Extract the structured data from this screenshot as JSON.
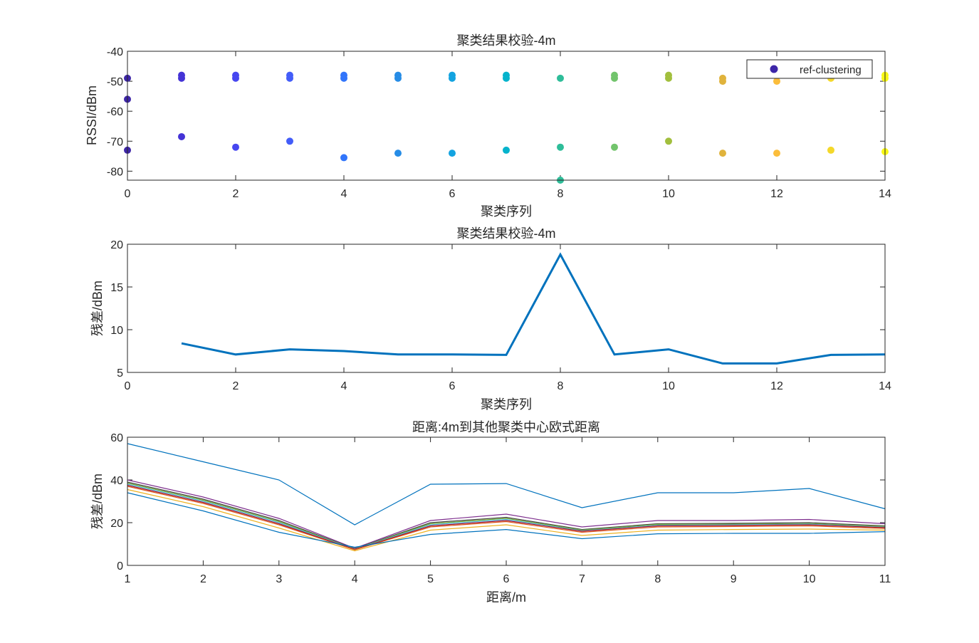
{
  "chart_data": [
    {
      "type": "scatter",
      "title": "聚类结果校验-4m",
      "xlabel": "聚类序列",
      "ylabel": "RSSI/dBm",
      "xlim": [
        0,
        14
      ],
      "ylim": [
        -83,
        -40
      ],
      "xticks": [
        0,
        2,
        4,
        6,
        8,
        10,
        12,
        14
      ],
      "yticks": [
        -40,
        -50,
        -60,
        -70,
        -80
      ],
      "legend": {
        "entries": [
          "ref-clustering"
        ],
        "placement": "top-right",
        "marker_color": "#3d26a8"
      },
      "clusters": [
        {
          "x": 0,
          "y": [
            -49,
            -56,
            -73
          ],
          "color": "#3e26a8"
        },
        {
          "x": 1,
          "y": [
            -48,
            -49,
            -68.5
          ],
          "color": "#4433d6"
        },
        {
          "x": 2,
          "y": [
            -48,
            -49,
            -72
          ],
          "color": "#4747f0"
        },
        {
          "x": 3,
          "y": [
            -48,
            -49,
            -70
          ],
          "color": "#435df9"
        },
        {
          "x": 4,
          "y": [
            -48,
            -49,
            -75.5
          ],
          "color": "#3175fb"
        },
        {
          "x": 5,
          "y": [
            -48,
            -49,
            -74
          ],
          "color": "#268ce6"
        },
        {
          "x": 6,
          "y": [
            -48,
            -49,
            -74
          ],
          "color": "#13a3e0"
        },
        {
          "x": 7,
          "y": [
            -48,
            -49,
            -73
          ],
          "color": "#05b3cc"
        },
        {
          "x": 8,
          "y": [
            -49,
            -72,
            -83
          ],
          "color": "#2ebd99"
        },
        {
          "x": 9,
          "y": [
            -48,
            -49,
            -72
          ],
          "color": "#72c46c"
        },
        {
          "x": 10,
          "y": [
            -48,
            -49,
            -70
          ],
          "color": "#a2bf3d"
        },
        {
          "x": 11,
          "y": [
            -49,
            -50,
            -74
          ],
          "color": "#e0b33c"
        },
        {
          "x": 12,
          "y": [
            -50,
            -74
          ],
          "color": "#fbbd3b"
        },
        {
          "x": 13,
          "y": [
            -49,
            -73
          ],
          "color": "#f4d82a"
        },
        {
          "x": 14,
          "y": [
            -48,
            -49,
            -73.5
          ],
          "color": "#f9f914"
        }
      ]
    },
    {
      "type": "line",
      "title": "聚类结果校验-4m",
      "xlabel": "聚类序列",
      "ylabel": "残差/dBm",
      "xlim": [
        0,
        14
      ],
      "ylim": [
        5,
        20
      ],
      "xticks": [
        0,
        2,
        4,
        6,
        8,
        10,
        12,
        14
      ],
      "yticks": [
        5,
        10,
        15,
        20
      ],
      "color": "#0072bd",
      "x": [
        1,
        2,
        3,
        4,
        5,
        6,
        7,
        8,
        9,
        10,
        11,
        12,
        13,
        14
      ],
      "values": [
        8.4,
        7.1,
        7.7,
        7.5,
        7.1,
        7.1,
        7.05,
        18.8,
        7.1,
        7.7,
        6.05,
        6.05,
        7.05,
        7.1
      ]
    },
    {
      "type": "line",
      "title": "距离:4m到其他聚类中心欧式距离",
      "xlabel": "距离/m",
      "ylabel": "残差/dBm",
      "xlim": [
        1,
        11
      ],
      "ylim": [
        0,
        60
      ],
      "xticks": [
        1,
        2,
        3,
        4,
        5,
        6,
        7,
        8,
        9,
        10,
        11
      ],
      "yticks": [
        0,
        20,
        40,
        60
      ],
      "x": [
        1,
        2,
        3,
        4,
        5,
        6,
        7,
        8,
        9,
        10,
        11
      ],
      "series": [
        {
          "color": "#0072bd",
          "values": [
            57,
            48.5,
            40,
            19,
            38,
            38.3,
            27,
            34,
            34,
            36,
            26.5
          ]
        },
        {
          "color": "#7e2f8e",
          "values": [
            40,
            32,
            22,
            8,
            21,
            24,
            18,
            21,
            21,
            21.5,
            19.5
          ]
        },
        {
          "color": "#444444",
          "values": [
            39,
            31,
            21,
            7.8,
            20,
            22.5,
            16.8,
            19.5,
            19.7,
            20,
            18.5
          ]
        },
        {
          "color": "#77ac30",
          "values": [
            38.5,
            30.5,
            20.5,
            7.7,
            19.5,
            22,
            16.5,
            19.2,
            19.3,
            19.6,
            18.2
          ]
        },
        {
          "color": "#4dbeee",
          "values": [
            38,
            30,
            20,
            7.6,
            19,
            21.5,
            16.2,
            18.8,
            19,
            19.3,
            17.9
          ]
        },
        {
          "color": "#a2142f",
          "values": [
            37.5,
            29.5,
            19.5,
            7.5,
            18.5,
            21,
            16,
            18.5,
            18.7,
            19,
            17.7
          ]
        },
        {
          "color": "#d95319",
          "values": [
            37,
            29,
            19,
            7.3,
            18,
            20.5,
            15.5,
            18,
            18.2,
            18.5,
            17.3
          ]
        },
        {
          "color": "#edb120",
          "values": [
            35.5,
            27.5,
            17.5,
            6.8,
            16.5,
            19,
            14,
            16.5,
            16.8,
            17,
            16.5
          ]
        },
        {
          "color": "#0072bd",
          "values": [
            34,
            25.5,
            15.5,
            8.5,
            14.5,
            16.8,
            12.5,
            14.8,
            15,
            15,
            15.8
          ]
        }
      ]
    }
  ]
}
